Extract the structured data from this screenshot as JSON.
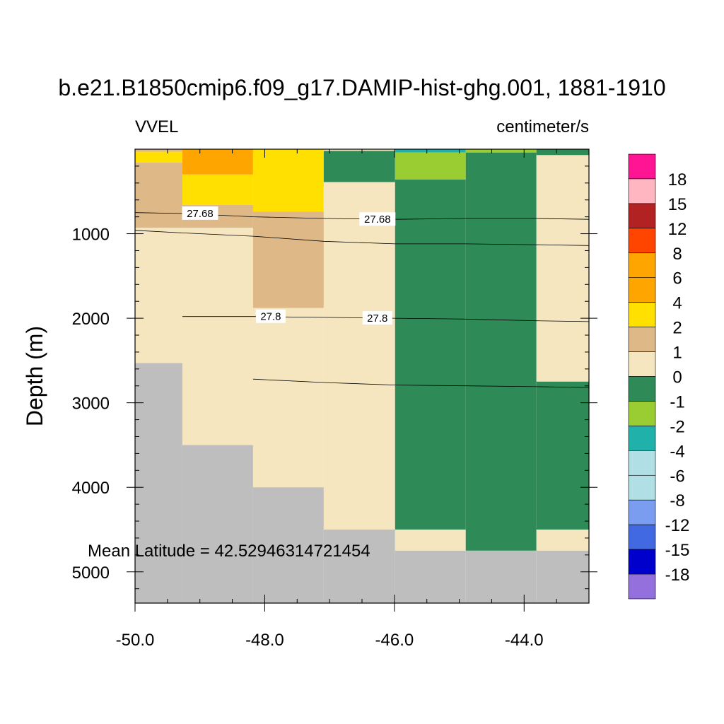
{
  "title": "b.e21.B1850cmip6.f09_g17.DAMIP-hist-ghg.001, 1881-1910",
  "left_label": "VVEL",
  "right_label": "centimeter/s",
  "annotation": "Mean Latitude = 42.52946314721454",
  "colors": {
    "missing": "#bebebe"
  },
  "chart_data": {
    "type": "heatmap",
    "title": "b.e21.B1850cmip6.f09_g17.DAMIP-hist-ghg.001, 1881-1910",
    "xlabel": "",
    "ylabel": "Depth (m)",
    "xlim": [
      -50.0,
      -43.0
    ],
    "ylim": [
      5370,
      0
    ],
    "x_ticks": [
      -50.0,
      -48.0,
      -46.0,
      -44.0
    ],
    "x_tick_labels": [
      "-50.0",
      "-48.0",
      "-46.0",
      "-44.0"
    ],
    "y_ticks": [
      1000,
      2000,
      3000,
      4000,
      5000
    ],
    "y_tick_labels": [
      "1000",
      "2000",
      "3000",
      "4000",
      "5000"
    ],
    "colorbar": {
      "colors": [
        "#ff1493",
        "#ffb6c1",
        "#b22222",
        "#ff4500",
        "#ffa500",
        "#ffa500",
        "#ffe000",
        "#deb887",
        "#f5e6bf",
        "#2e8b57",
        "#9acd32",
        "#20b2aa",
        "#b0e0e6",
        "#b0e0e6",
        "#7b9df0",
        "#4169e1",
        "#0000cd",
        "#9370db"
      ],
      "labels": [
        "18",
        "15",
        "12",
        "8",
        "6",
        "4",
        "2",
        "1",
        "0",
        "-1",
        "-2",
        "-4",
        "-6",
        "-8",
        "-12",
        "-15",
        "-18"
      ]
    },
    "cells": [
      {
        "x0": -50.0,
        "x1": -49.27,
        "z0": 0,
        "z1": 30,
        "c": "#deb887"
      },
      {
        "x0": -50.0,
        "x1": -49.27,
        "z0": 30,
        "z1": 160,
        "c": "#ffe000"
      },
      {
        "x0": -50.0,
        "x1": -49.27,
        "z0": 160,
        "z1": 930,
        "c": "#deb887"
      },
      {
        "x0": -50.0,
        "x1": -49.27,
        "z0": 930,
        "z1": 2530,
        "c": "#f5e6bf"
      },
      {
        "x0": -50.0,
        "x1": -49.27,
        "z0": 2530,
        "z1": 5370,
        "c": "missing"
      },
      {
        "x0": -49.27,
        "x1": -48.18,
        "z0": 0,
        "z1": 300,
        "c": "#ffa500"
      },
      {
        "x0": -49.27,
        "x1": -48.18,
        "z0": 300,
        "z1": 660,
        "c": "#ffe000"
      },
      {
        "x0": -49.27,
        "x1": -48.18,
        "z0": 660,
        "z1": 930,
        "c": "#deb887"
      },
      {
        "x0": -49.27,
        "x1": -48.18,
        "z0": 930,
        "z1": 3500,
        "c": "#f5e6bf"
      },
      {
        "x0": -49.27,
        "x1": -48.18,
        "z0": 3500,
        "z1": 5370,
        "c": "missing"
      },
      {
        "x0": -48.18,
        "x1": -47.09,
        "z0": 0,
        "z1": 740,
        "c": "#ffe000"
      },
      {
        "x0": -48.18,
        "x1": -47.09,
        "z0": 740,
        "z1": 1880,
        "c": "#deb887"
      },
      {
        "x0": -48.18,
        "x1": -47.09,
        "z0": 1880,
        "z1": 4000,
        "c": "#f5e6bf"
      },
      {
        "x0": -48.18,
        "x1": -47.09,
        "z0": 4000,
        "z1": 5370,
        "c": "missing"
      },
      {
        "x0": -47.09,
        "x1": -45.99,
        "z0": 0,
        "z1": 20,
        "c": "#f5e6bf"
      },
      {
        "x0": -47.09,
        "x1": -45.99,
        "z0": 20,
        "z1": 390,
        "c": "#2e8b57"
      },
      {
        "x0": -47.09,
        "x1": -45.99,
        "z0": 390,
        "z1": 4500,
        "c": "#f5e6bf"
      },
      {
        "x0": -47.09,
        "x1": -45.99,
        "z0": 4500,
        "z1": 5370,
        "c": "missing"
      },
      {
        "x0": -45.99,
        "x1": -44.9,
        "z0": 0,
        "z1": 40,
        "c": "#20b2aa"
      },
      {
        "x0": -45.99,
        "x1": -44.9,
        "z0": 40,
        "z1": 360,
        "c": "#9acd32"
      },
      {
        "x0": -45.99,
        "x1": -44.9,
        "z0": 360,
        "z1": 4500,
        "c": "#2e8b57"
      },
      {
        "x0": -45.99,
        "x1": -44.9,
        "z0": 4500,
        "z1": 4750,
        "c": "#f5e6bf"
      },
      {
        "x0": -45.99,
        "x1": -44.9,
        "z0": 4750,
        "z1": 5370,
        "c": "missing"
      },
      {
        "x0": -44.9,
        "x1": -43.81,
        "z0": 0,
        "z1": 40,
        "c": "#9acd32"
      },
      {
        "x0": -44.9,
        "x1": -43.81,
        "z0": 40,
        "z1": 4750,
        "c": "#2e8b57"
      },
      {
        "x0": -44.9,
        "x1": -43.81,
        "z0": 4750,
        "z1": 5370,
        "c": "missing"
      },
      {
        "x0": -43.81,
        "x1": -43.0,
        "z0": 0,
        "z1": 70,
        "c": "#2e8b57"
      },
      {
        "x0": -43.81,
        "x1": -43.0,
        "z0": 70,
        "z1": 2750,
        "c": "#f5e6bf"
      },
      {
        "x0": -43.81,
        "x1": -43.0,
        "z0": 2750,
        "z1": 4500,
        "c": "#2e8b57"
      },
      {
        "x0": -43.81,
        "x1": -43.0,
        "z0": 4500,
        "z1": 4750,
        "c": "#f5e6bf"
      },
      {
        "x0": -43.81,
        "x1": -43.0,
        "z0": 4750,
        "z1": 5370,
        "c": "missing"
      }
    ],
    "contours": [
      {
        "label": "27.68",
        "label_at": [
          -49.27,
          -45.99
        ],
        "points": [
          [
            -50.0,
            750
          ],
          [
            -49.27,
            760
          ],
          [
            -48.18,
            800
          ],
          [
            -47.09,
            820
          ],
          [
            -45.99,
            830
          ],
          [
            -44.9,
            820
          ],
          [
            -43.81,
            820
          ],
          [
            -43.0,
            830
          ]
        ]
      },
      {
        "label": "",
        "label_at": [],
        "points": [
          [
            -50.0,
            960
          ],
          [
            -49.27,
            990
          ],
          [
            -48.18,
            1030
          ],
          [
            -47.09,
            1090
          ],
          [
            -45.99,
            1120
          ],
          [
            -44.9,
            1120
          ],
          [
            -43.81,
            1130
          ],
          [
            -43.0,
            1140
          ]
        ]
      },
      {
        "label": "27.8",
        "label_at": [
          -48.18,
          -45.99
        ],
        "points": [
          [
            -49.27,
            1980
          ],
          [
            -48.18,
            1980
          ],
          [
            -47.09,
            1990
          ],
          [
            -45.99,
            2000
          ],
          [
            -44.9,
            2010
          ],
          [
            -43.81,
            2030
          ],
          [
            -43.0,
            2040
          ]
        ]
      },
      {
        "label": "",
        "label_at": [],
        "points": [
          [
            -48.18,
            2720
          ],
          [
            -47.09,
            2760
          ],
          [
            -45.99,
            2790
          ],
          [
            -44.9,
            2800
          ],
          [
            -43.81,
            2810
          ],
          [
            -43.0,
            2820
          ]
        ]
      }
    ]
  }
}
